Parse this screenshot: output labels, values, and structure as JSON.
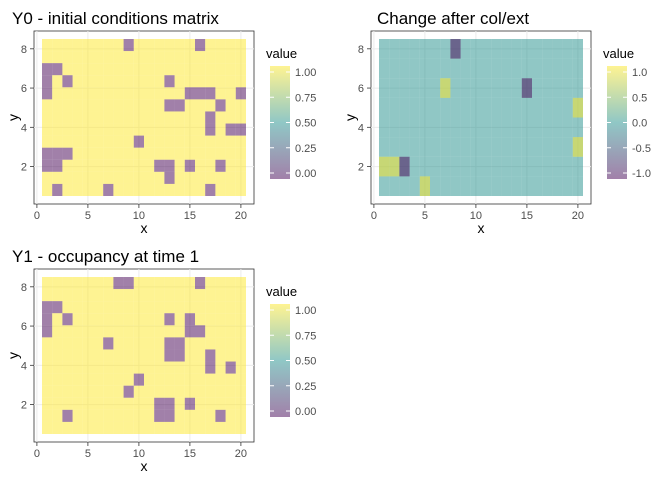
{
  "chart_data": [
    {
      "type": "heatmap",
      "title": "Y0 - initial conditions matrix",
      "xlabel": "x",
      "ylabel": "y",
      "x_ticks": [
        "0",
        "5",
        "10",
        "15",
        "20"
      ],
      "y_ticks": [
        "2",
        "4",
        "6",
        "8"
      ],
      "xlim": [
        0.5,
        20.5
      ],
      "ylim": [
        0.5,
        8.5
      ],
      "legend": {
        "title": "value",
        "labels": [
          "1.00",
          "0.75",
          "0.50",
          "0.25",
          "0.00"
        ],
        "range": [
          0,
          1
        ],
        "colors": [
          "#fde725",
          "#21908c",
          "#440154"
        ],
        "placement": "right"
      },
      "grid": true,
      "rows_top_to_bottom": [
        "11111111011111101111",
        "11111111111111111111",
        "00111111111111111111",
        "01011111111101111111",
        "01111111111111000110",
        "11111111111100111011",
        "11111111111111110111",
        "11111111111111110100",
        "11111111101111111111",
        "00011111111111111111",
        "00111111111001011011",
        "11111111111101111111",
        "10111101111111110111"
      ]
    },
    {
      "type": "heatmap",
      "title": "Change after col/ext",
      "xlabel": "x",
      "ylabel": "y",
      "x_ticks": [
        "0",
        "5",
        "10",
        "15",
        "20"
      ],
      "y_ticks": [
        "2",
        "4",
        "6",
        "8"
      ],
      "xlim": [
        0.5,
        20.5
      ],
      "ylim": [
        0.5,
        8.5
      ],
      "legend": {
        "title": "value",
        "labels": [
          "1.0",
          "0.5",
          "0.0",
          "-0.5",
          "-1.0"
        ],
        "range": [
          -1,
          1
        ],
        "colors": [
          "#fde725",
          "#21908c",
          "#440154"
        ],
        "placement": "right"
      },
      "grid": true,
      "changes": [
        {
          "x": 8,
          "y": 8,
          "v": -1
        },
        {
          "x": 7,
          "y": 6,
          "v": 1
        },
        {
          "x": 15,
          "y": 6,
          "v": -1
        },
        {
          "x": 20,
          "y": 5,
          "v": 1
        },
        {
          "x": 20,
          "y": 3,
          "v": 1
        },
        {
          "x": 1,
          "y": 2,
          "v": 1
        },
        {
          "x": 2,
          "y": 2,
          "v": 1
        },
        {
          "x": 3,
          "y": 2,
          "v": -1
        },
        {
          "x": 5,
          "y": 1,
          "v": 1
        }
      ]
    },
    {
      "type": "heatmap",
      "title": "Y1 - occupancy at time 1",
      "xlabel": "x",
      "ylabel": "y",
      "x_ticks": [
        "0",
        "5",
        "10",
        "15",
        "20"
      ],
      "y_ticks": [
        "2",
        "4",
        "6",
        "8"
      ],
      "xlim": [
        0.5,
        20.5
      ],
      "ylim": [
        0.5,
        8.5
      ],
      "legend": {
        "title": "value",
        "labels": [
          "1.00",
          "0.75",
          "0.50",
          "0.25",
          "0.00"
        ],
        "range": [
          0,
          1
        ],
        "colors": [
          "#fde725",
          "#21908c",
          "#440154"
        ],
        "placement": "right"
      },
      "grid": true,
      "rows_top_to_bottom": [
        "11111110011111101111",
        "11111111111111111111",
        "00111111111111111111",
        "01011111111101011111",
        "01111111111111001111",
        "11111101111100111111",
        "11111111111100110111",
        "11111111111111110101",
        "11111111101111111111",
        "11111111011111111111",
        "11111111111001011111",
        "11011111111001111011",
        "11111111111111111111"
      ]
    }
  ]
}
